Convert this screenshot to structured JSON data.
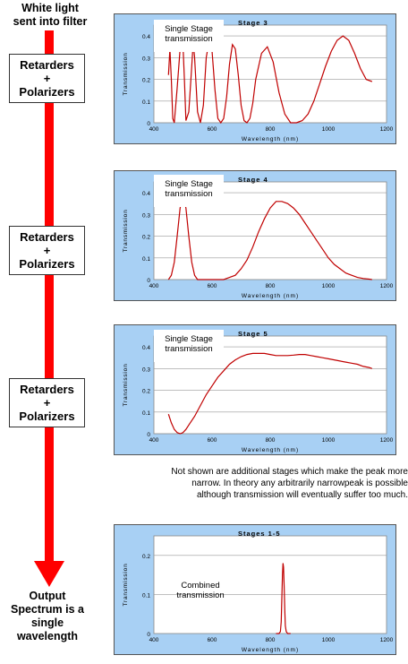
{
  "top_label": [
    "White light",
    "sent into filter"
  ],
  "output_label": [
    "Output",
    "Spectrum is a",
    "single",
    "wavelength"
  ],
  "retarder_boxes": [
    {
      "lines": [
        "Retarders",
        "+",
        "Polarizers"
      ]
    },
    {
      "lines": [
        "Retarders",
        "+",
        "Polarizers"
      ]
    },
    {
      "lines": [
        "Retarders",
        "+",
        "Polarizers"
      ]
    }
  ],
  "note": [
    "Not shown are additional stages which make the peak more",
    "narrow.  In theory any arbitrarily narrowpeak is possible",
    "although transmission will eventually suffer too much."
  ],
  "colors": {
    "arrow": "#ff0000",
    "panel_bg": "#a8d0f4",
    "curve": "#c00000"
  },
  "chart_data": [
    {
      "type": "line",
      "title": "Stage 3",
      "box_label": [
        "Single Stage",
        "transmission"
      ],
      "xlabel": "Wavelength (nm)",
      "ylabel": "Transmission",
      "xlim": [
        400,
        1200
      ],
      "ylim": [
        0,
        0.45
      ],
      "xticks": [
        "400",
        "600",
        "800",
        "1000",
        "1200"
      ],
      "yticks": [
        "0",
        "0.1",
        "0.2",
        "0.3",
        "0.4"
      ],
      "series": [
        {
          "x": [
            450,
            455,
            460,
            465,
            470,
            480,
            490,
            500,
            505,
            510,
            520,
            530,
            535,
            540,
            550,
            560,
            570,
            580,
            590,
            600,
            610,
            620,
            630,
            640,
            650,
            660,
            670,
            680,
            690,
            700,
            710,
            720,
            730,
            740,
            750,
            770,
            790,
            810,
            830,
            850,
            870,
            890,
            910,
            930,
            950,
            970,
            990,
            1010,
            1030,
            1050,
            1070,
            1090,
            1110,
            1130,
            1150
          ],
          "y": [
            0.22,
            0.34,
            0.2,
            0.02,
            0.0,
            0.16,
            0.34,
            0.36,
            0.2,
            0.01,
            0.05,
            0.26,
            0.37,
            0.3,
            0.05,
            0.0,
            0.08,
            0.3,
            0.38,
            0.33,
            0.15,
            0.02,
            0.0,
            0.02,
            0.12,
            0.27,
            0.36,
            0.34,
            0.22,
            0.08,
            0.01,
            0.0,
            0.02,
            0.09,
            0.2,
            0.32,
            0.35,
            0.28,
            0.14,
            0.04,
            0.0,
            0.0,
            0.01,
            0.04,
            0.1,
            0.18,
            0.26,
            0.33,
            0.38,
            0.4,
            0.38,
            0.32,
            0.25,
            0.2,
            0.19
          ]
        }
      ]
    },
    {
      "type": "line",
      "title": "Stage 4",
      "box_label": [
        "Single Stage",
        "transmission"
      ],
      "xlabel": "Wavelength (nm)",
      "ylabel": "Transmission",
      "xlim": [
        400,
        1200
      ],
      "ylim": [
        0,
        0.45
      ],
      "xticks": [
        "400",
        "600",
        "800",
        "1000",
        "1200"
      ],
      "yticks": [
        "0",
        "0.1",
        "0.2",
        "0.3",
        "0.4"
      ],
      "series": [
        {
          "x": [
            450,
            460,
            470,
            480,
            490,
            500,
            510,
            520,
            530,
            540,
            550,
            560,
            580,
            600,
            620,
            640,
            660,
            680,
            700,
            720,
            740,
            760,
            780,
            800,
            820,
            840,
            860,
            880,
            900,
            920,
            940,
            960,
            980,
            1000,
            1020,
            1040,
            1060,
            1080,
            1100,
            1120,
            1140,
            1150
          ],
          "y": [
            0.0,
            0.02,
            0.08,
            0.2,
            0.33,
            0.38,
            0.33,
            0.2,
            0.08,
            0.02,
            0.0,
            0.0,
            0.0,
            0.0,
            0.0,
            0.0,
            0.01,
            0.02,
            0.05,
            0.09,
            0.15,
            0.22,
            0.28,
            0.33,
            0.36,
            0.36,
            0.35,
            0.33,
            0.3,
            0.26,
            0.22,
            0.18,
            0.14,
            0.1,
            0.07,
            0.05,
            0.03,
            0.02,
            0.01,
            0.005,
            0.002,
            0.0
          ]
        }
      ]
    },
    {
      "type": "line",
      "title": "Stage 5",
      "box_label": [
        "Single Stage",
        "transmission"
      ],
      "xlabel": "Wavelength (nm)",
      "ylabel": "Transmission",
      "xlim": [
        400,
        1200
      ],
      "ylim": [
        0,
        0.45
      ],
      "xticks": [
        "400",
        "600",
        "800",
        "1000",
        "1200"
      ],
      "yticks": [
        "0",
        "0.1",
        "0.2",
        "0.3",
        "0.4"
      ],
      "series": [
        {
          "x": [
            450,
            460,
            470,
            480,
            490,
            500,
            510,
            520,
            540,
            560,
            580,
            600,
            620,
            640,
            660,
            680,
            700,
            720,
            740,
            760,
            780,
            800,
            820,
            840,
            860,
            880,
            900,
            920,
            940,
            960,
            980,
            1000,
            1020,
            1040,
            1060,
            1080,
            1100,
            1120,
            1140,
            1150
          ],
          "y": [
            0.09,
            0.05,
            0.02,
            0.005,
            0.0,
            0.005,
            0.02,
            0.04,
            0.08,
            0.13,
            0.18,
            0.22,
            0.26,
            0.29,
            0.32,
            0.34,
            0.355,
            0.365,
            0.37,
            0.37,
            0.37,
            0.365,
            0.36,
            0.36,
            0.36,
            0.362,
            0.365,
            0.365,
            0.36,
            0.355,
            0.35,
            0.345,
            0.34,
            0.335,
            0.33,
            0.325,
            0.32,
            0.31,
            0.305,
            0.3
          ]
        }
      ]
    },
    {
      "type": "line",
      "title": "Stages 1-5",
      "box_label": [
        "Combined",
        "transmission"
      ],
      "xlabel": "Wavelength (nm)",
      "ylabel": "Transmission",
      "xlim": [
        400,
        1200
      ],
      "ylim": [
        0,
        0.25
      ],
      "xticks": [
        "400",
        "600",
        "800",
        "1000",
        "1200"
      ],
      "yticks": [
        "0",
        "0.1",
        "0.2"
      ],
      "series": [
        {
          "x": [
            820,
            830,
            835,
            838,
            840,
            842,
            844,
            846,
            848,
            850,
            852,
            855,
            860,
            870
          ],
          "y": [
            0.0,
            0.0,
            0.005,
            0.03,
            0.09,
            0.15,
            0.18,
            0.17,
            0.12,
            0.06,
            0.02,
            0.005,
            0.0,
            0.0
          ]
        }
      ]
    }
  ]
}
